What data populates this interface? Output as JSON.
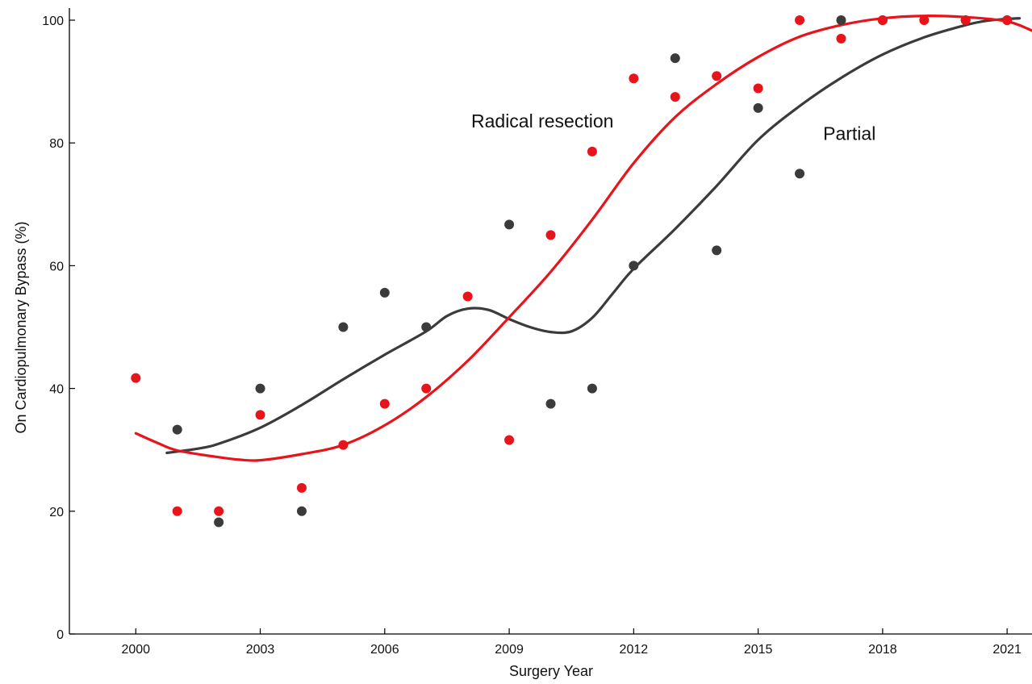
{
  "chart_data": {
    "type": "scatter",
    "title": "",
    "xlabel": "Surgery Year",
    "ylabel": "On Cardiopulmonary Bypass (%)",
    "xlim": [
      1998.4,
      2021.6
    ],
    "ylim": [
      0,
      100
    ],
    "xticks": [
      2000,
      2003,
      2006,
      2009,
      2012,
      2015,
      2018,
      2021
    ],
    "yticks": [
      0,
      20,
      40,
      60,
      80,
      100
    ],
    "grid": false,
    "legend": "none",
    "series": [
      {
        "name": "Radical resection",
        "color": "#e8141b",
        "points": [
          [
            2000,
            41.7
          ],
          [
            2001,
            20
          ],
          [
            2002,
            20
          ],
          [
            2003,
            35.7
          ],
          [
            2004,
            23.8
          ],
          [
            2005,
            30.8
          ],
          [
            2006,
            37.5
          ],
          [
            2007,
            40
          ],
          [
            2008,
            55
          ],
          [
            2009,
            31.6
          ],
          [
            2010,
            65
          ],
          [
            2011,
            78.6
          ],
          [
            2012,
            90.5
          ],
          [
            2013,
            87.5
          ],
          [
            2014,
            90.9
          ],
          [
            2015,
            88.9
          ],
          [
            2016,
            100
          ],
          [
            2017,
            97
          ],
          [
            2018,
            100
          ],
          [
            2019,
            100
          ],
          [
            2020,
            100
          ],
          [
            2021,
            100
          ]
        ],
        "fit": [
          [
            2000,
            32.7
          ],
          [
            2000.5,
            31.2
          ],
          [
            2001,
            29.9
          ],
          [
            2002,
            28.8
          ],
          [
            2002.5,
            28.4
          ],
          [
            2003,
            28.3
          ],
          [
            2004,
            29.3
          ],
          [
            2005,
            30.8
          ],
          [
            2006,
            34
          ],
          [
            2007,
            38.6
          ],
          [
            2008,
            44.5
          ],
          [
            2009,
            51.6
          ],
          [
            2010,
            59
          ],
          [
            2011,
            67.5
          ],
          [
            2012,
            76.7
          ],
          [
            2013,
            84.2
          ],
          [
            2014,
            89.6
          ],
          [
            2015,
            94
          ],
          [
            2016,
            97.3
          ],
          [
            2017,
            99.2
          ],
          [
            2018,
            100.3
          ],
          [
            2019,
            100.7
          ],
          [
            2020,
            100.5
          ],
          [
            2021,
            99.8
          ],
          [
            2021.6,
            98.3
          ]
        ]
      },
      {
        "name": "Partial",
        "color": "#3b3b3b",
        "points": [
          [
            2001,
            33.3
          ],
          [
            2002,
            18.2
          ],
          [
            2003,
            40
          ],
          [
            2004,
            20
          ],
          [
            2005,
            50
          ],
          [
            2006,
            55.6
          ],
          [
            2007,
            50
          ],
          [
            2009,
            66.7
          ],
          [
            2010,
            37.5
          ],
          [
            2011,
            40
          ],
          [
            2012,
            60
          ],
          [
            2013,
            93.8
          ],
          [
            2014,
            62.5
          ],
          [
            2015,
            85.7
          ],
          [
            2016,
            75
          ],
          [
            2017,
            100
          ],
          [
            2018,
            100
          ],
          [
            2020,
            100
          ],
          [
            2021,
            100
          ]
        ],
        "fit": [
          [
            2000.75,
            29.5
          ],
          [
            2001.5,
            30.2
          ],
          [
            2002,
            31
          ],
          [
            2003,
            33.6
          ],
          [
            2004,
            37.3
          ],
          [
            2005,
            41.5
          ],
          [
            2006,
            45.5
          ],
          [
            2007,
            49.3
          ],
          [
            2007.5,
            51.8
          ],
          [
            2008,
            53
          ],
          [
            2008.5,
            52.8
          ],
          [
            2009,
            51.3
          ],
          [
            2009.5,
            50
          ],
          [
            2010,
            49.2
          ],
          [
            2010.5,
            49.3
          ],
          [
            2011,
            51.5
          ],
          [
            2011.5,
            55.5
          ],
          [
            2012,
            59.5
          ],
          [
            2013,
            66
          ],
          [
            2014,
            73
          ],
          [
            2015,
            80.5
          ],
          [
            2016,
            86
          ],
          [
            2017,
            90.6
          ],
          [
            2018,
            94.4
          ],
          [
            2019,
            97.2
          ],
          [
            2020,
            99.2
          ],
          [
            2020.5,
            99.9
          ],
          [
            2021,
            100.2
          ],
          [
            2021.3,
            100.3
          ]
        ]
      }
    ],
    "annotations": [
      {
        "text": "Radical resection",
        "x": 2009.8,
        "y": 82.5,
        "series": 0
      },
      {
        "text": "Partial",
        "x": 2017.2,
        "y": 80.5,
        "series": 1
      }
    ]
  }
}
